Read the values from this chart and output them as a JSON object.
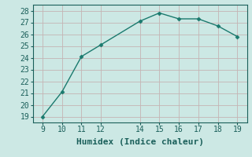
{
  "x": [
    9,
    10,
    11,
    12,
    14,
    15,
    16,
    17,
    18,
    19
  ],
  "y": [
    19.0,
    21.1,
    24.1,
    25.1,
    27.1,
    27.8,
    27.3,
    27.3,
    26.7,
    25.8
  ],
  "line_color": "#1a7a6e",
  "marker_color": "#1a7a6e",
  "bg_color": "#cce8e4",
  "grid_h_color": "#c4b4b4",
  "grid_v_color": "#c4b4b4",
  "xlabel": "Humidex (Indice chaleur)",
  "xlim": [
    8.5,
    19.5
  ],
  "ylim": [
    18.5,
    28.5
  ],
  "xticks": [
    9,
    10,
    11,
    12,
    14,
    15,
    16,
    17,
    18,
    19
  ],
  "yticks": [
    19,
    20,
    21,
    22,
    23,
    24,
    25,
    26,
    27,
    28
  ],
  "tick_color": "#1a5f5a",
  "label_color": "#1a5f5a",
  "font_family": "monospace",
  "tick_fontsize": 7,
  "xlabel_fontsize": 8
}
